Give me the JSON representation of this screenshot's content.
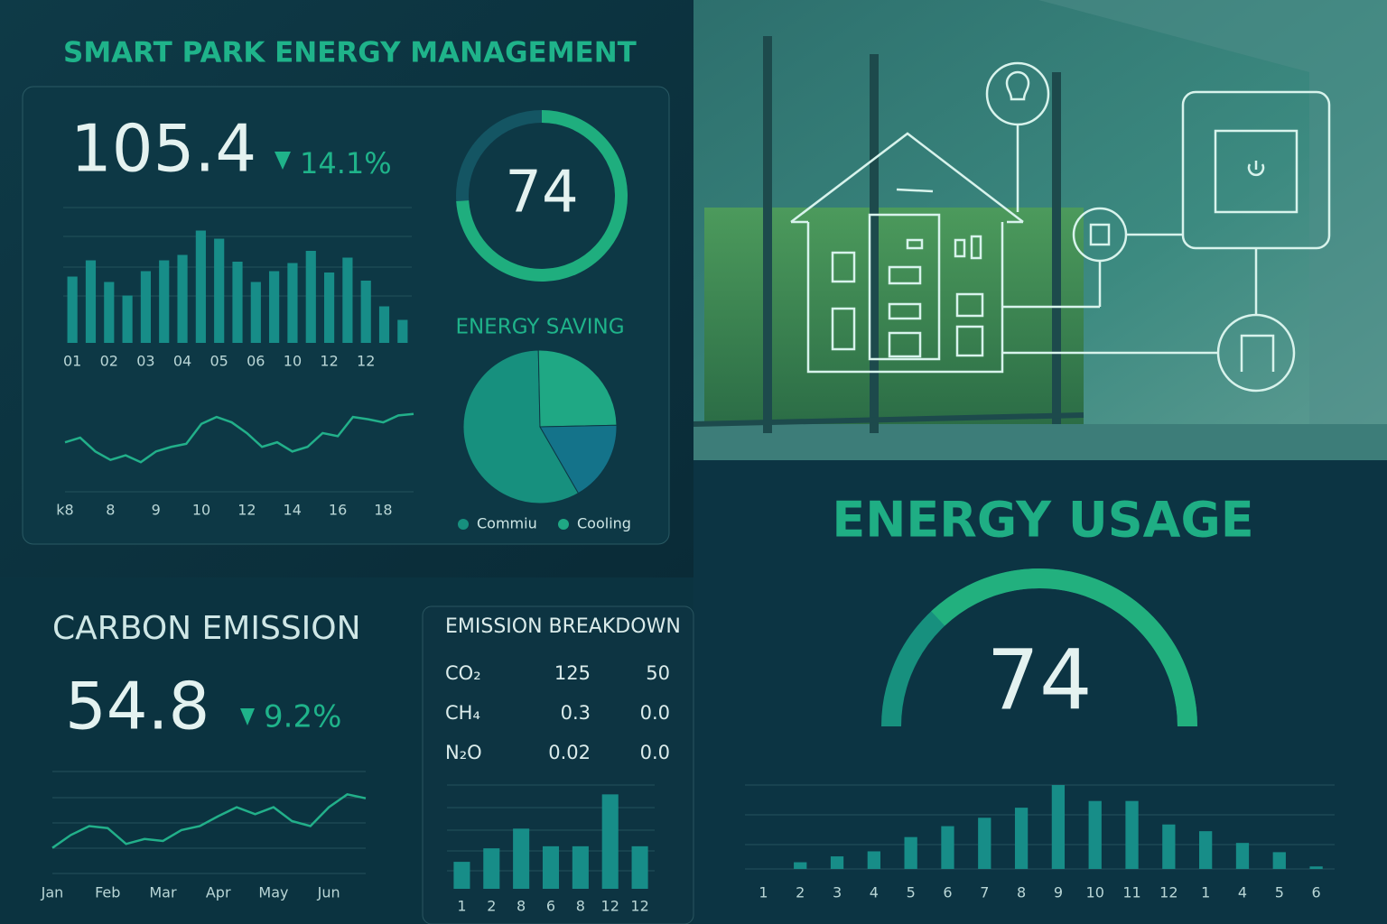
{
  "header": {
    "title": "SMART PARK ENERGY MANAGEMENT"
  },
  "energy_kpi": {
    "value": 105.4,
    "change": "14.1%"
  },
  "carbon": {
    "title": "CARBON EMISSION",
    "value": 54.8,
    "change": "9.2%"
  },
  "breakdown": {
    "title": "EMISSION BREAKDOWN",
    "rows": [
      [
        "CO₂",
        "125",
        "50"
      ],
      [
        "CH₄",
        "0.3",
        "0.0"
      ],
      [
        "N₂O",
        "0.02",
        "0.0"
      ]
    ]
  },
  "usage": {
    "title": "ENERGY USAGE"
  },
  "chart_data": [
    {
      "type": "bar",
      "color": "#178d88",
      "categories": [
        "01",
        null,
        "02",
        null,
        "03",
        null,
        "04",
        null,
        "05",
        null,
        "06",
        null,
        "10",
        null,
        "12",
        null,
        "12",
        null,
        null
      ],
      "values": [
        49,
        61,
        45,
        35,
        53,
        61,
        65,
        83,
        77,
        60,
        45,
        53,
        59,
        68,
        52,
        63,
        46,
        27,
        17
      ],
      "ylim": [
        0,
        100
      ]
    },
    {
      "type": "line",
      "color": "#22b08a",
      "categories": [
        "k8",
        null,
        null,
        "8",
        null,
        null,
        "9",
        null,
        null,
        "10",
        null,
        null,
        "12",
        null,
        null,
        "14",
        null,
        null,
        "16",
        null,
        null,
        "18",
        null,
        null
      ],
      "values": [
        41,
        47,
        29,
        18,
        24,
        15,
        29,
        35,
        39,
        65,
        74,
        67,
        53,
        35,
        41,
        29,
        35,
        53,
        49,
        74,
        71,
        67,
        76,
        78
      ],
      "ylim": [
        0,
        100
      ]
    },
    {
      "type": "gauge",
      "shape": "ring",
      "value": 74,
      "ylim": [
        0,
        100
      ],
      "color": "#1fae7e"
    },
    {
      "type": "pie",
      "title": "ENERGY SAVING",
      "categories": [
        "Commiu",
        "Cooling",
        null
      ],
      "values": [
        58,
        25,
        17
      ],
      "colors": [
        "#17907e",
        "#1fa884",
        "#14738a"
      ]
    },
    {
      "type": "line",
      "color": "#22b08a",
      "categories": [
        "Jan",
        null,
        null,
        "Feb",
        null,
        null,
        "Mar",
        null,
        null,
        "Apr",
        null,
        null,
        "May",
        null,
        null,
        "Jun",
        null,
        null
      ],
      "values": [
        23,
        36,
        45,
        43,
        27,
        32,
        30,
        41,
        45,
        55,
        64,
        57,
        64,
        50,
        45,
        64,
        77,
        73
      ],
      "ylim": [
        0,
        100
      ]
    },
    {
      "type": "bar",
      "color": "#178d88",
      "categories": [
        "1",
        "2",
        "8",
        "6",
        "8",
        "12",
        "12"
      ],
      "values": [
        26,
        39,
        58,
        41,
        41,
        91,
        41
      ],
      "ylim": [
        0,
        100
      ]
    },
    {
      "type": "gauge",
      "shape": "semicircle",
      "value": 74,
      "ylim": [
        0,
        100
      ],
      "color": "#22b07e"
    },
    {
      "type": "bar",
      "color": "#178d88",
      "categories": [
        "1",
        "2",
        "3",
        "4",
        "5",
        "6",
        "7",
        "8",
        "9",
        "10",
        "11",
        "12",
        "1",
        "4",
        "5",
        "6"
      ],
      "values": [
        0,
        8,
        15,
        21,
        38,
        51,
        61,
        73,
        100,
        81,
        81,
        53,
        45,
        31,
        20,
        3
      ],
      "ylim": [
        0,
        100
      ]
    }
  ]
}
